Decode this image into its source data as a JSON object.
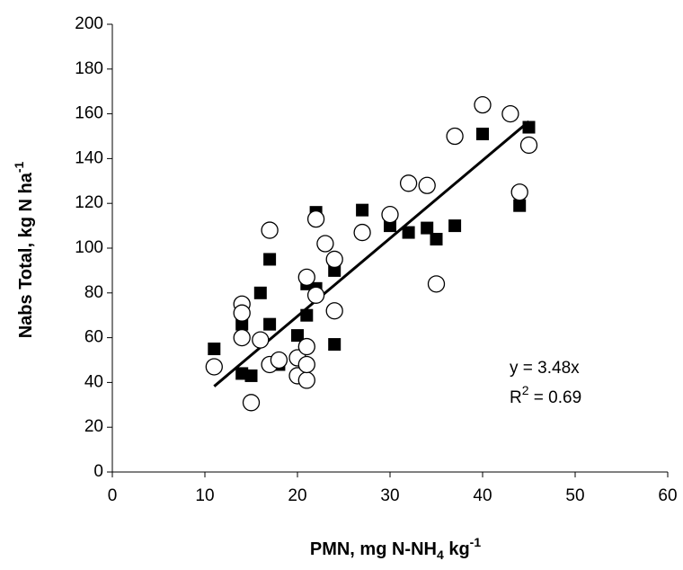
{
  "chart_data": {
    "type": "scatter",
    "x_label": {
      "main": "PMN, mg N-NH",
      "sub": "4",
      "mid": " kg",
      "sup": "-1"
    },
    "y_label": {
      "main": "Nabs Total, kg N ha",
      "sup": "-1"
    },
    "annotation": {
      "equation": "y = 3.48x",
      "r_main": "R",
      "r_sup": "2",
      "r_rest": " = 0.69"
    },
    "xlim": [
      0,
      60
    ],
    "xticks": [
      0,
      10,
      20,
      30,
      40,
      50,
      60
    ],
    "ylim": [
      0,
      200
    ],
    "yticks": [
      0,
      20,
      40,
      60,
      80,
      100,
      120,
      140,
      160,
      180,
      200
    ],
    "series": [
      {
        "marker": "square",
        "color": "#000000",
        "x": [
          11,
          14,
          14,
          15,
          16,
          17,
          17,
          18,
          20,
          21,
          21,
          22,
          22,
          23,
          24,
          24,
          27,
          30,
          32,
          34,
          35,
          37,
          40,
          44,
          45
        ],
        "values": [
          55,
          66,
          44,
          43,
          80,
          95,
          66,
          48,
          61,
          70,
          84,
          116,
          82,
          102,
          90,
          57,
          117,
          110,
          107,
          109,
          104,
          110,
          151,
          119,
          154
        ]
      },
      {
        "marker": "circle",
        "color": "#000000",
        "x": [
          11,
          14,
          14,
          14,
          15,
          16,
          17,
          17,
          18,
          20,
          20,
          21,
          21,
          21,
          21,
          22,
          22,
          23,
          24,
          24,
          27,
          30,
          32,
          34,
          35,
          37,
          40,
          43,
          44,
          45
        ],
        "values": [
          47,
          75,
          71,
          60,
          31,
          59,
          108,
          48,
          50,
          43,
          51,
          41,
          48,
          56,
          87,
          79,
          113,
          102,
          95,
          72,
          107,
          115,
          129,
          128,
          84,
          150,
          164,
          160,
          125,
          146
        ]
      }
    ],
    "trendline": {
      "x": [
        11,
        45
      ],
      "slope": 3.48,
      "color": "#000000"
    }
  }
}
